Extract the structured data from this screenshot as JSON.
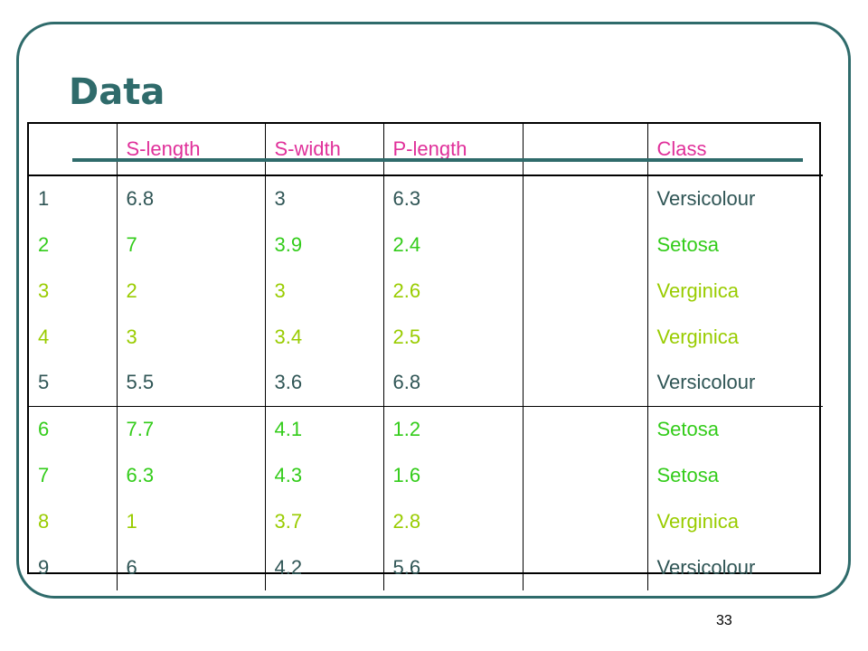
{
  "slide": {
    "title": "Data",
    "page_number": "33"
  },
  "colors": {
    "frame": "#2f6b6b",
    "title": "#2f6b6b",
    "header_text": "#e0309a",
    "versicolour": "#2f5555",
    "setosa": "#33cc1a",
    "verginica": "#99cc00"
  },
  "table": {
    "headers": [
      "",
      "S-length",
      "S-width",
      "P-length",
      "",
      "Class"
    ],
    "rows": [
      {
        "cells": [
          "1",
          "6.8",
          "3",
          "6.3",
          "",
          "Versicolour"
        ],
        "class_key": "versicolour"
      },
      {
        "cells": [
          "2",
          "7",
          "3.9",
          "2.4",
          "",
          "Setosa"
        ],
        "class_key": "setosa"
      },
      {
        "cells": [
          "3",
          "2",
          "3",
          "2.6",
          "",
          "Verginica"
        ],
        "class_key": "verginica"
      },
      {
        "cells": [
          "4",
          "3",
          "3.4",
          "2.5",
          "",
          "Verginica"
        ],
        "class_key": "verginica"
      },
      {
        "cells": [
          "5",
          "5.5",
          "3.6",
          "6.8",
          "",
          "Versicolour"
        ],
        "class_key": "versicolour"
      },
      {
        "cells": [
          "6",
          "7.7",
          "4.1",
          "1.2",
          "",
          "Setosa"
        ],
        "class_key": "setosa"
      },
      {
        "cells": [
          "7",
          "6.3",
          "4.3",
          "1.6",
          "",
          "Setosa"
        ],
        "class_key": "setosa"
      },
      {
        "cells": [
          "8",
          "1",
          "3.7",
          "2.8",
          "",
          "Verginica"
        ],
        "class_key": "verginica"
      },
      {
        "cells": [
          "9",
          "6",
          "4.2",
          "5.6",
          "",
          "Versicolour"
        ],
        "class_key": "versicolour"
      }
    ]
  }
}
